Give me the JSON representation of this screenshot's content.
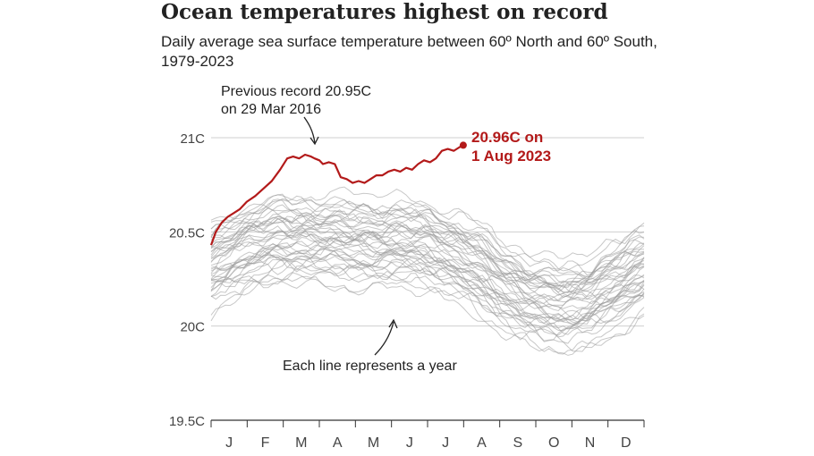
{
  "title": "Ocean temperatures highest on record",
  "subtitle": "Daily average sea surface temperature between 60º North and 60º South, 1979-2023",
  "colors": {
    "record": "#b31a1a",
    "past_years": "#9a9a9a",
    "grid": "#cfcfcf"
  },
  "chart_data": {
    "type": "line",
    "y_ticks": [
      {
        "value": 21.0,
        "label": "21C"
      },
      {
        "value": 20.5,
        "label": "20.5C"
      },
      {
        "value": 20.0,
        "label": "20C"
      },
      {
        "value": 19.5,
        "label": "19.5C"
      }
    ],
    "ylim": [
      19.5,
      21.0
    ],
    "xlim": [
      1,
      365
    ],
    "months": [
      "J",
      "F",
      "M",
      "A",
      "M",
      "J",
      "J",
      "A",
      "S",
      "O",
      "N",
      "D"
    ],
    "grid": true,
    "series_2023": {
      "color": "#b31a1a",
      "x": [
        1,
        5,
        10,
        15,
        20,
        25,
        31,
        38,
        45,
        52,
        59,
        65,
        70,
        75,
        80,
        85,
        88,
        92,
        95,
        100,
        105,
        110,
        115,
        120,
        125,
        130,
        135,
        140,
        145,
        150,
        155,
        160,
        165,
        170,
        175,
        180,
        185,
        190,
        195,
        200,
        205,
        210,
        213
      ],
      "y": [
        20.43,
        20.5,
        20.55,
        20.58,
        20.6,
        20.62,
        20.66,
        20.69,
        20.73,
        20.77,
        20.83,
        20.89,
        20.9,
        20.89,
        20.91,
        20.9,
        20.89,
        20.88,
        20.86,
        20.87,
        20.86,
        20.79,
        20.78,
        20.76,
        20.77,
        20.76,
        20.78,
        20.8,
        20.8,
        20.82,
        20.83,
        20.82,
        20.84,
        20.83,
        20.86,
        20.88,
        20.87,
        20.89,
        20.93,
        20.94,
        20.93,
        20.95,
        20.96
      ]
    },
    "past_years_count": 44
  },
  "annotations": {
    "previous_record": [
      "Previous record 20.95C",
      "on 29 Mar 2016"
    ],
    "latest_record": [
      "20.96C on",
      "1 Aug 2023"
    ],
    "each_line": "Each line represents a year"
  }
}
